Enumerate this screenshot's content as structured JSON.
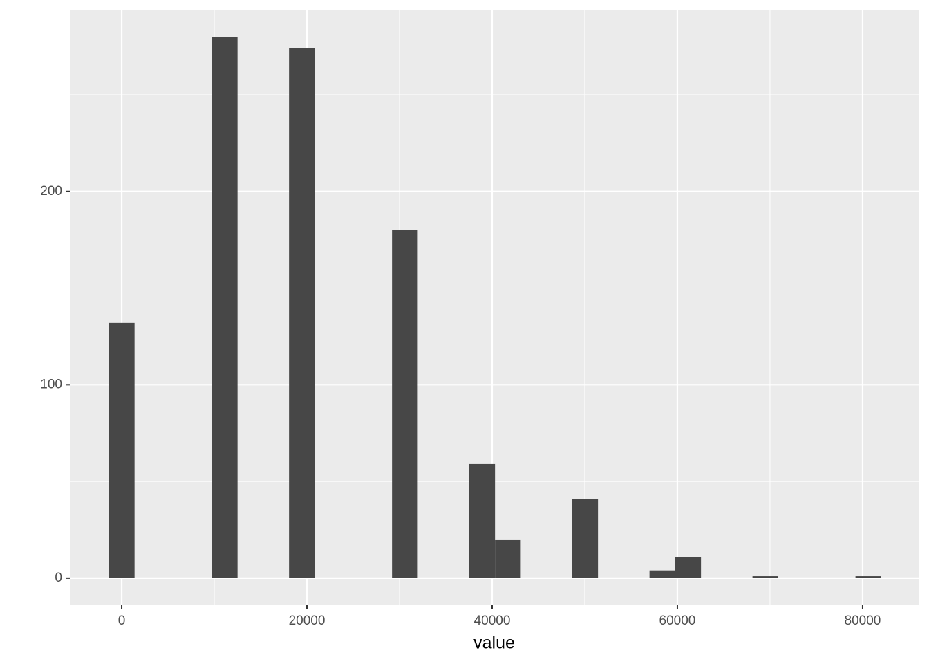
{
  "chart_data": {
    "type": "histogram",
    "x_label": "value",
    "bins": [
      -1390,
      1390,
      4170,
      6950,
      9730,
      12510,
      15290,
      18070,
      20850,
      23630,
      26410,
      29190,
      31970,
      34750,
      37530,
      40310,
      43090,
      45870,
      48650,
      51430,
      54210,
      56990,
      59770,
      62550,
      65330,
      68110,
      70890,
      73670,
      76450,
      79230,
      82010
    ],
    "values": [
      132,
      0,
      0,
      0,
      280,
      0,
      0,
      274,
      0,
      0,
      0,
      180,
      0,
      0,
      59,
      20,
      0,
      0,
      41,
      0,
      0,
      4,
      11,
      0,
      0,
      1,
      0,
      0,
      0,
      1
    ],
    "color": "#474747",
    "xlim": [
      -5600,
      86050
    ],
    "ylim": [
      -14,
      294
    ],
    "xticks": [
      0,
      20000,
      40000,
      60000,
      80000
    ],
    "yticks": [
      0,
      100,
      200
    ],
    "x_minor_ticks": [
      10000,
      30000,
      50000,
      70000
    ],
    "y_minor_ticks": [
      50,
      150,
      250
    ],
    "grid": true,
    "panel_color": "#ebebeb"
  }
}
